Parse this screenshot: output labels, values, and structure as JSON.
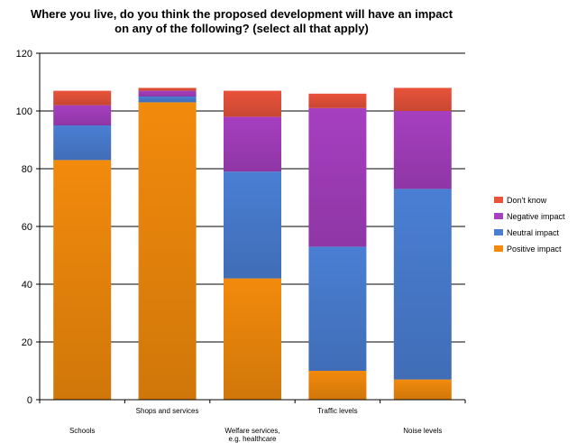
{
  "chart_data": {
    "type": "bar",
    "stacked": true,
    "title_lines": [
      "Where you live, do you think the proposed development will have an impact",
      "on any of the following? (select all that apply)"
    ],
    "categories": [
      [
        "Schools"
      ],
      [
        "Shops and services"
      ],
      [
        "Welfare services,",
        "e.g. healthcare"
      ],
      [
        "Traffic levels"
      ],
      [
        "Noise levels"
      ]
    ],
    "series": [
      {
        "name": "Positive impact",
        "color": "#f28a0c",
        "values": [
          83,
          103,
          42,
          10,
          7
        ]
      },
      {
        "name": "Neutral impact",
        "color": "#4a7fd4",
        "values": [
          12,
          2,
          37,
          43,
          66
        ]
      },
      {
        "name": "Negative impact",
        "color": "#a63fc0",
        "values": [
          7,
          2,
          19,
          48,
          27
        ]
      },
      {
        "name": "Don't know",
        "color": "#e9533a",
        "values": [
          5,
          1,
          9,
          5,
          8
        ]
      }
    ],
    "yticks": [
      0,
      20,
      40,
      60,
      80,
      100,
      120
    ],
    "ylim": [
      0,
      120
    ],
    "grid": true,
    "legend": "right"
  }
}
